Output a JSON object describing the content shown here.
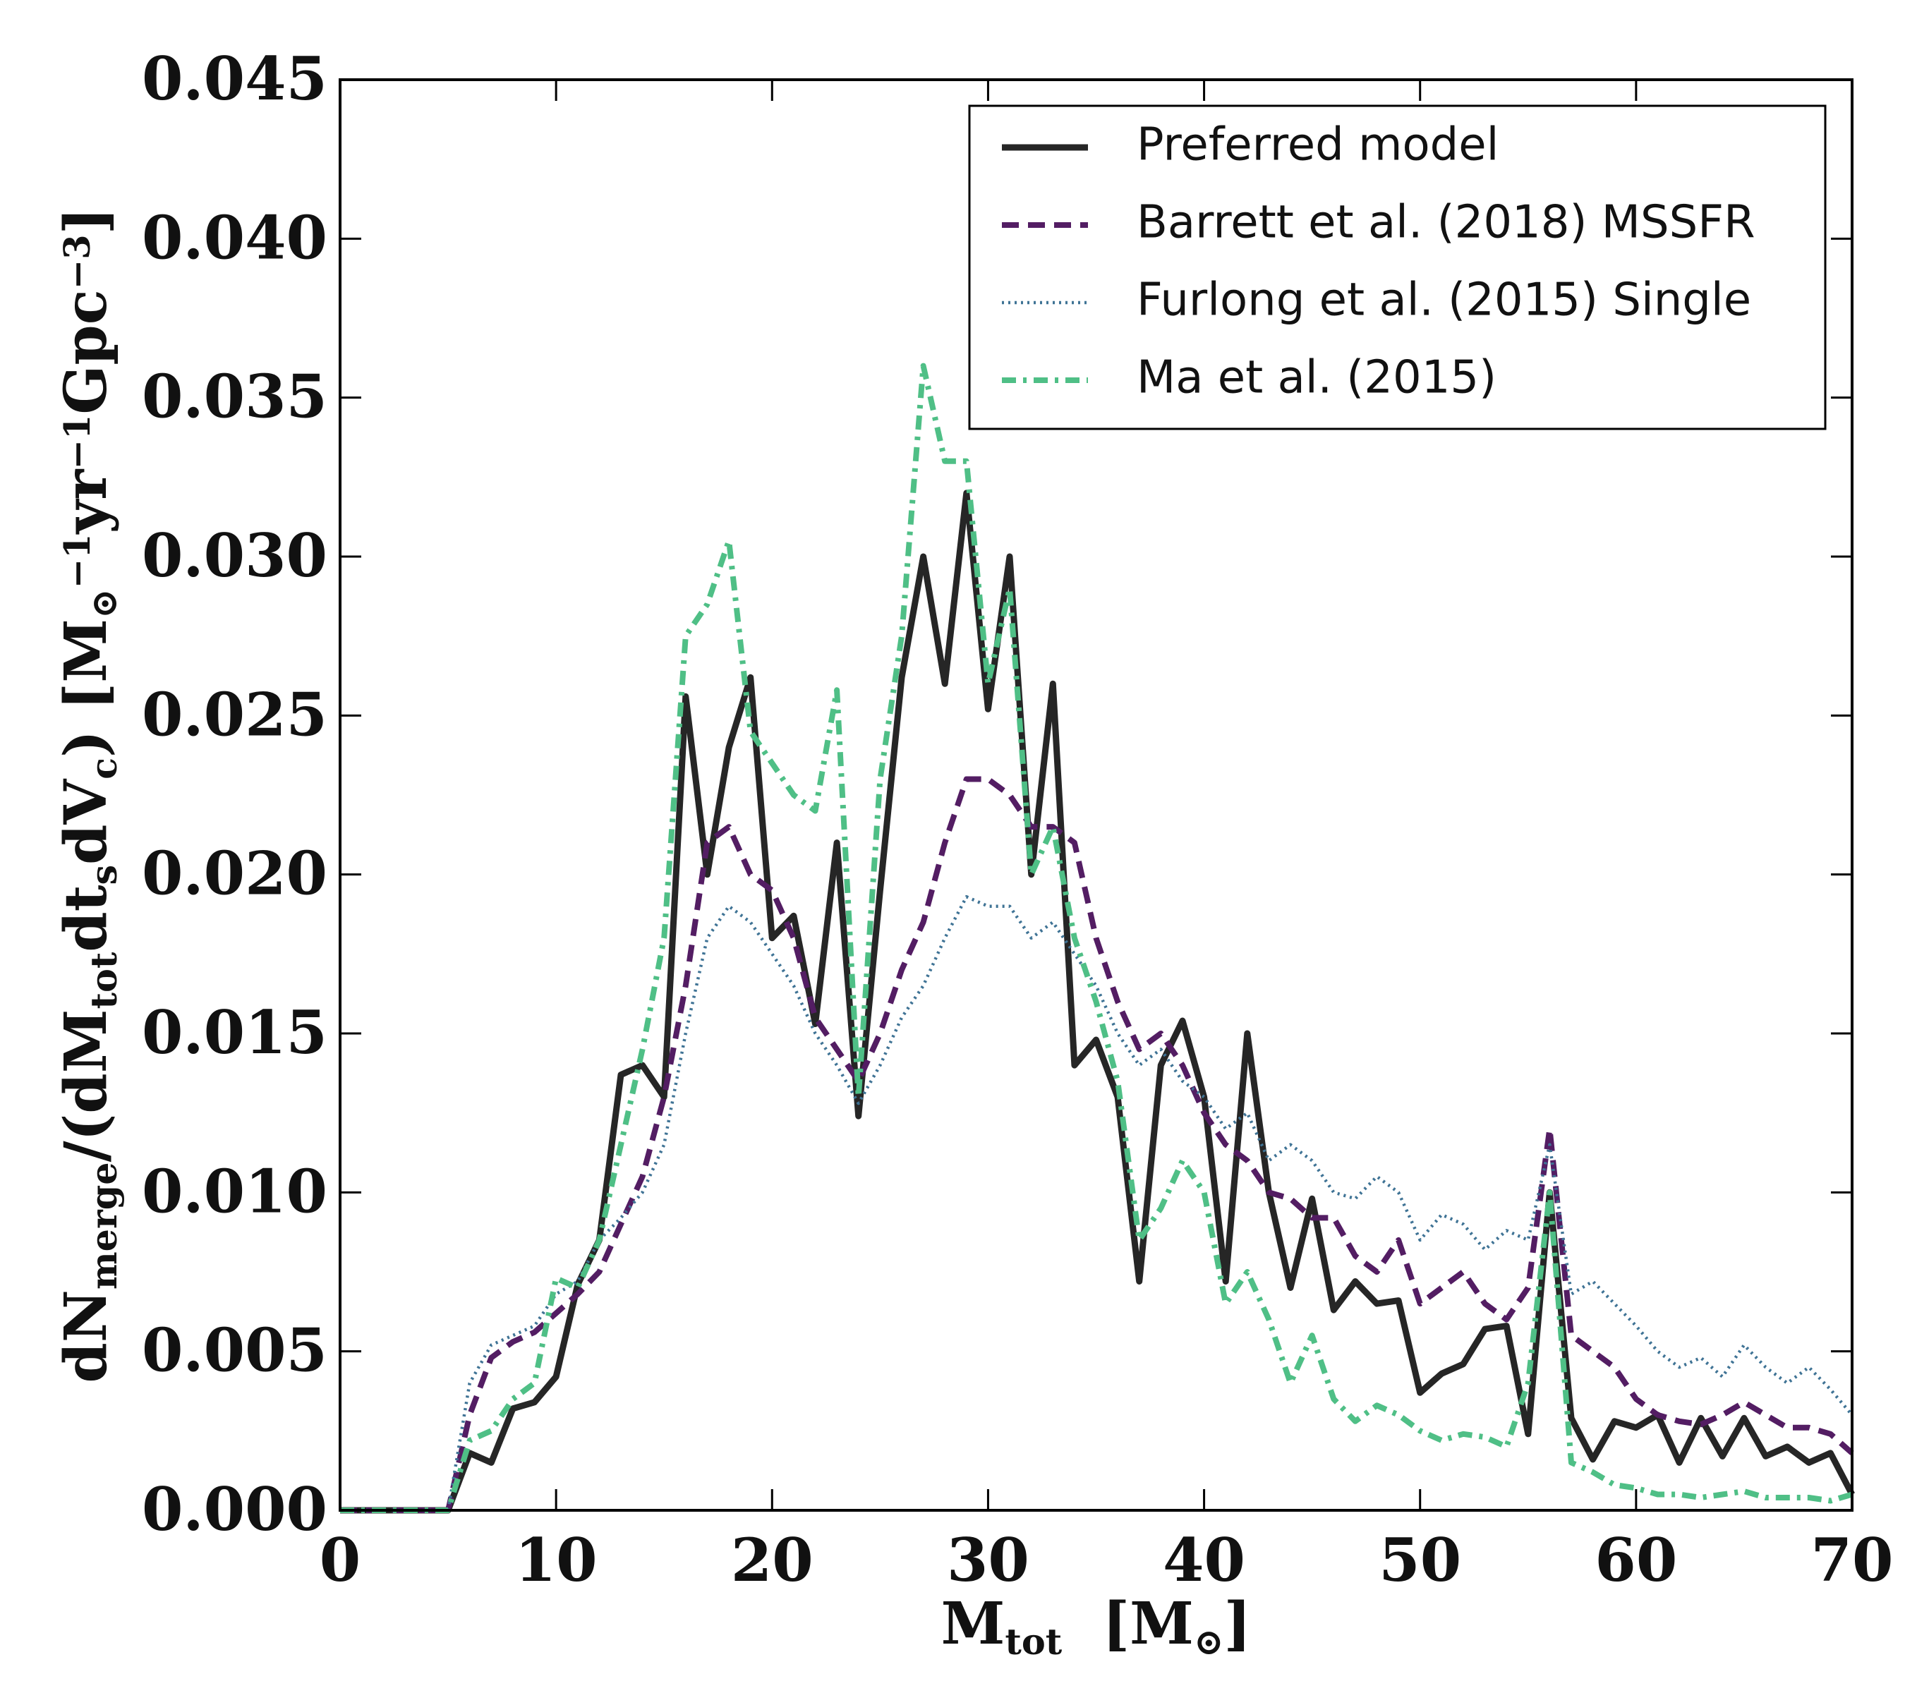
{
  "chart_data": {
    "type": "line",
    "xlabel": [
      "M",
      {
        "sub": "tot"
      },
      "  [M",
      {
        "sub": "⊙"
      },
      "]"
    ],
    "ylabel": [
      "dN",
      {
        "sub": "merge"
      },
      "/(dM",
      {
        "sub": "tot"
      },
      "dt",
      {
        "sub": "s"
      },
      "dV",
      {
        "sub": "c"
      },
      ") [M",
      {
        "sub": "⊙"
      },
      {
        "sup": "−1"
      },
      "yr",
      {
        "sup": "−1"
      },
      "Gpc",
      {
        "sup": "−3"
      },
      "]"
    ],
    "x": [
      0,
      1,
      2,
      3,
      4,
      5,
      6,
      7,
      8,
      9,
      10,
      11,
      12,
      13,
      14,
      15,
      16,
      17,
      18,
      19,
      20,
      21,
      22,
      23,
      24,
      25,
      26,
      27,
      28,
      29,
      30,
      31,
      32,
      33,
      34,
      35,
      36,
      37,
      38,
      39,
      40,
      41,
      42,
      43,
      44,
      45,
      46,
      47,
      48,
      49,
      50,
      51,
      52,
      53,
      54,
      55,
      56,
      57,
      58,
      59,
      60,
      61,
      62,
      63,
      64,
      65,
      66,
      67,
      68,
      69,
      70
    ],
    "series": [
      {
        "name": "Preferred model",
        "color": "#262626",
        "style": "solid",
        "values": [
          0,
          0,
          0,
          0,
          0,
          0,
          0.0018,
          0.0015,
          0.0032,
          0.0034,
          0.0042,
          0.0071,
          0.0085,
          0.0137,
          0.014,
          0.013,
          0.0256,
          0.02,
          0.024,
          0.0262,
          0.018,
          0.0187,
          0.0153,
          0.021,
          0.0124,
          0.0195,
          0.0262,
          0.03,
          0.026,
          0.032,
          0.0252,
          0.03,
          0.02,
          0.026,
          0.014,
          0.0148,
          0.013,
          0.0072,
          0.014,
          0.0154,
          0.013,
          0.0072,
          0.015,
          0.01,
          0.007,
          0.0098,
          0.0063,
          0.0072,
          0.0065,
          0.0066,
          0.0037,
          0.0043,
          0.0046,
          0.0057,
          0.0058,
          0.0024,
          0.01,
          0.0029,
          0.0016,
          0.0028,
          0.0026,
          0.003,
          0.0015,
          0.0029,
          0.0017,
          0.0029,
          0.0017,
          0.002,
          0.0015,
          0.0018,
          0.0005
        ]
      },
      {
        "name": "Barrett et al. (2018) MSSFR",
        "color": "#531d63",
        "style": "dashed",
        "values": [
          0,
          0,
          0,
          0,
          0,
          0,
          0.003,
          0.0048,
          0.0053,
          0.0056,
          0.0062,
          0.0068,
          0.0075,
          0.009,
          0.0105,
          0.013,
          0.0165,
          0.021,
          0.0215,
          0.02,
          0.0195,
          0.018,
          0.0155,
          0.0145,
          0.0135,
          0.015,
          0.017,
          0.0185,
          0.021,
          0.023,
          0.023,
          0.0225,
          0.0215,
          0.0215,
          0.021,
          0.018,
          0.016,
          0.0145,
          0.015,
          0.014,
          0.0125,
          0.0115,
          0.011,
          0.01,
          0.0098,
          0.0092,
          0.0092,
          0.008,
          0.0075,
          0.0085,
          0.0065,
          0.007,
          0.0075,
          0.0065,
          0.006,
          0.007,
          0.012,
          0.0055,
          0.005,
          0.0045,
          0.0035,
          0.003,
          0.0028,
          0.0027,
          0.003,
          0.0034,
          0.003,
          0.0026,
          0.0026,
          0.0024,
          0.0018
        ]
      },
      {
        "name": "Furlong et al. (2015) Single",
        "color": "#3f7395",
        "style": "dotted",
        "values": [
          0,
          0,
          0,
          0,
          0,
          0,
          0.004,
          0.0052,
          0.0055,
          0.0058,
          0.0068,
          0.0072,
          0.0085,
          0.0092,
          0.01,
          0.0115,
          0.015,
          0.018,
          0.019,
          0.0185,
          0.0175,
          0.0165,
          0.015,
          0.014,
          0.0128,
          0.014,
          0.0155,
          0.0165,
          0.018,
          0.0193,
          0.019,
          0.019,
          0.018,
          0.0185,
          0.0175,
          0.0165,
          0.015,
          0.014,
          0.0145,
          0.0135,
          0.013,
          0.012,
          0.0125,
          0.011,
          0.0115,
          0.011,
          0.01,
          0.0098,
          0.0105,
          0.01,
          0.0085,
          0.0093,
          0.009,
          0.0082,
          0.0088,
          0.0085,
          0.0115,
          0.0068,
          0.0072,
          0.0065,
          0.0058,
          0.005,
          0.0045,
          0.0048,
          0.0042,
          0.0052,
          0.0045,
          0.004,
          0.0045,
          0.0038,
          0.003
        ]
      },
      {
        "name": "Ma et al. (2015)",
        "color": "#4fbf86",
        "style": "dashdot",
        "values": [
          0,
          0,
          0,
          0,
          0,
          0,
          0.0022,
          0.0025,
          0.0035,
          0.004,
          0.0073,
          0.007,
          0.0085,
          0.0115,
          0.0145,
          0.018,
          0.0275,
          0.0285,
          0.0305,
          0.0245,
          0.0235,
          0.0225,
          0.022,
          0.0258,
          0.013,
          0.023,
          0.0275,
          0.036,
          0.033,
          0.033,
          0.026,
          0.029,
          0.02,
          0.0215,
          0.018,
          0.016,
          0.0135,
          0.0085,
          0.0095,
          0.011,
          0.01,
          0.0065,
          0.0075,
          0.006,
          0.004,
          0.0055,
          0.0035,
          0.0028,
          0.0033,
          0.003,
          0.0025,
          0.0022,
          0.0024,
          0.0023,
          0.002,
          0.004,
          0.01,
          0.0015,
          0.0012,
          0.0008,
          0.0007,
          0.0005,
          0.0005,
          0.0004,
          0.0005,
          0.0006,
          0.0004,
          0.0004,
          0.0004,
          0.0003,
          0.0005
        ]
      }
    ],
    "xlim": [
      0,
      70
    ],
    "xticks": [
      0,
      10,
      20,
      30,
      40,
      50,
      60,
      70
    ],
    "ylim": [
      0,
      0.045
    ],
    "yticks": [
      {
        "value": 0,
        "label": "0.000"
      },
      {
        "value": 0.005,
        "label": "0.005"
      },
      {
        "value": 0.01,
        "label": "0.010"
      },
      {
        "value": 0.015,
        "label": "0.015"
      },
      {
        "value": 0.02,
        "label": "0.020"
      },
      {
        "value": 0.025,
        "label": "0.025"
      },
      {
        "value": 0.03,
        "label": "0.030"
      },
      {
        "value": 0.035,
        "label": "0.035"
      },
      {
        "value": 0.04,
        "label": "0.040"
      },
      {
        "value": 0.045,
        "label": "0.045"
      }
    ],
    "grid": false,
    "legend": "upper right"
  }
}
